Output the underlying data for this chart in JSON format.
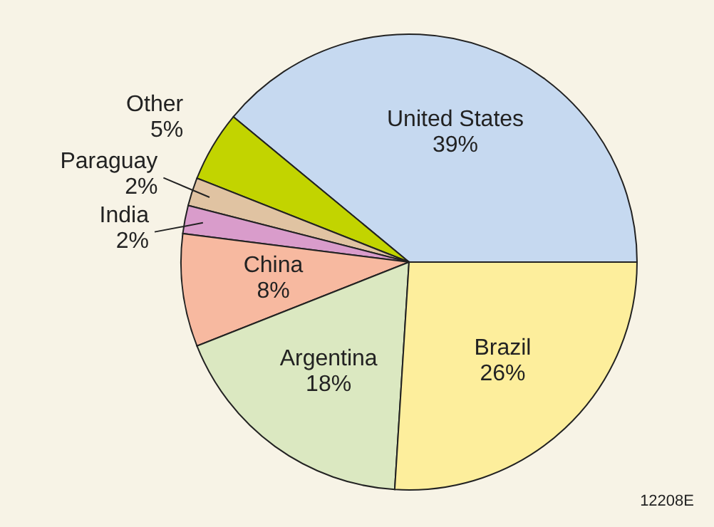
{
  "chart_data": {
    "type": "pie",
    "categories": [
      "United States",
      "Other",
      "Paraguay",
      "India",
      "China",
      "Argentina",
      "Brazil"
    ],
    "values": [
      39,
      5,
      2,
      2,
      8,
      18,
      26
    ],
    "value_labels": [
      "39%",
      "5%",
      "2%",
      "2%",
      "8%",
      "18%",
      "26%"
    ],
    "colors": [
      "#c6d9f0",
      "#c2d400",
      "#e0c3a2",
      "#d99ccb",
      "#f7b9a0",
      "#dbe8c1",
      "#fdee9c"
    ],
    "annotations": [
      "12208E"
    ]
  }
}
